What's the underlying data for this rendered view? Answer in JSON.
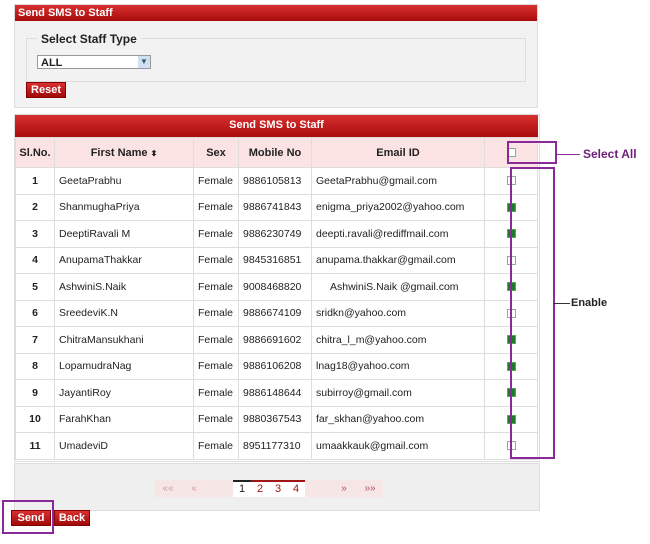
{
  "top_panel": {
    "title": "Send SMS to Staff",
    "fieldset_label": "Select Staff Type",
    "staff_type_value": "ALL",
    "reset_label": "Reset"
  },
  "table": {
    "title": "Send SMS to Staff",
    "headers": [
      "Sl.No.",
      "First Name",
      "Sex",
      "Mobile No",
      "Email ID"
    ],
    "sort_glyph": "⬍",
    "rows": [
      {
        "no": "1",
        "name": "GeetaPrabhu",
        "sex": "Female",
        "mobile": "9886105813",
        "email": "GeetaPrabhu@gmail.com",
        "checked": false
      },
      {
        "no": "2",
        "name": "ShanmughaPriya",
        "sex": "Female",
        "mobile": "9886741843",
        "email": "enigma_priya2002@yahoo.com",
        "checked": true
      },
      {
        "no": "3",
        "name": "DeeptiRavali M",
        "sex": "Female",
        "mobile": "9886230749",
        "email": "deepti.ravali@rediffmail.com",
        "checked": true
      },
      {
        "no": "4",
        "name": "AnupamaThakkar",
        "sex": "Female",
        "mobile": "9845316851",
        "email": "anupama.thakkar@gmail.com",
        "checked": false
      },
      {
        "no": "5",
        "name": "AshwiniS.Naik",
        "sex": "Female",
        "mobile": "9008468820",
        "email": "AshwiniS.Naik @gmail.com",
        "checked": true
      },
      {
        "no": "6",
        "name": "SreedeviK.N",
        "sex": "Female",
        "mobile": "9886674109",
        "email": "sridkn@yahoo.com",
        "checked": false
      },
      {
        "no": "7",
        "name": "ChitraMansukhani",
        "sex": "Female",
        "mobile": "9886691602",
        "email": "chitra_l_m@yahoo.com",
        "checked": true
      },
      {
        "no": "8",
        "name": "LopamudraNag",
        "sex": "Female",
        "mobile": "9886106208",
        "email": "lnag18@yahoo.com",
        "checked": true
      },
      {
        "no": "9",
        "name": "JayantiRoy",
        "sex": "Female",
        "mobile": "9886148644",
        "email": "subirroy@gmail.com",
        "checked": true
      },
      {
        "no": "10",
        "name": "FarahKhan",
        "sex": "Female",
        "mobile": "9880367543",
        "email": "far_skhan@yahoo.com",
        "checked": true
      },
      {
        "no": "11",
        "name": "UmadeviD",
        "sex": "Female",
        "mobile": "8951177310",
        "email": "umaakkauk@gmail.com",
        "checked": false
      }
    ]
  },
  "pager": {
    "first": "««",
    "prev": "«",
    "pages": [
      "1",
      "2",
      "3",
      "4"
    ],
    "current": "1",
    "next": "»",
    "last": "»»"
  },
  "actions": {
    "send": "Send",
    "back": "Back"
  },
  "annotations": {
    "select_all": "Select All",
    "enable": "Enable",
    "color": "#8a2a9a"
  }
}
